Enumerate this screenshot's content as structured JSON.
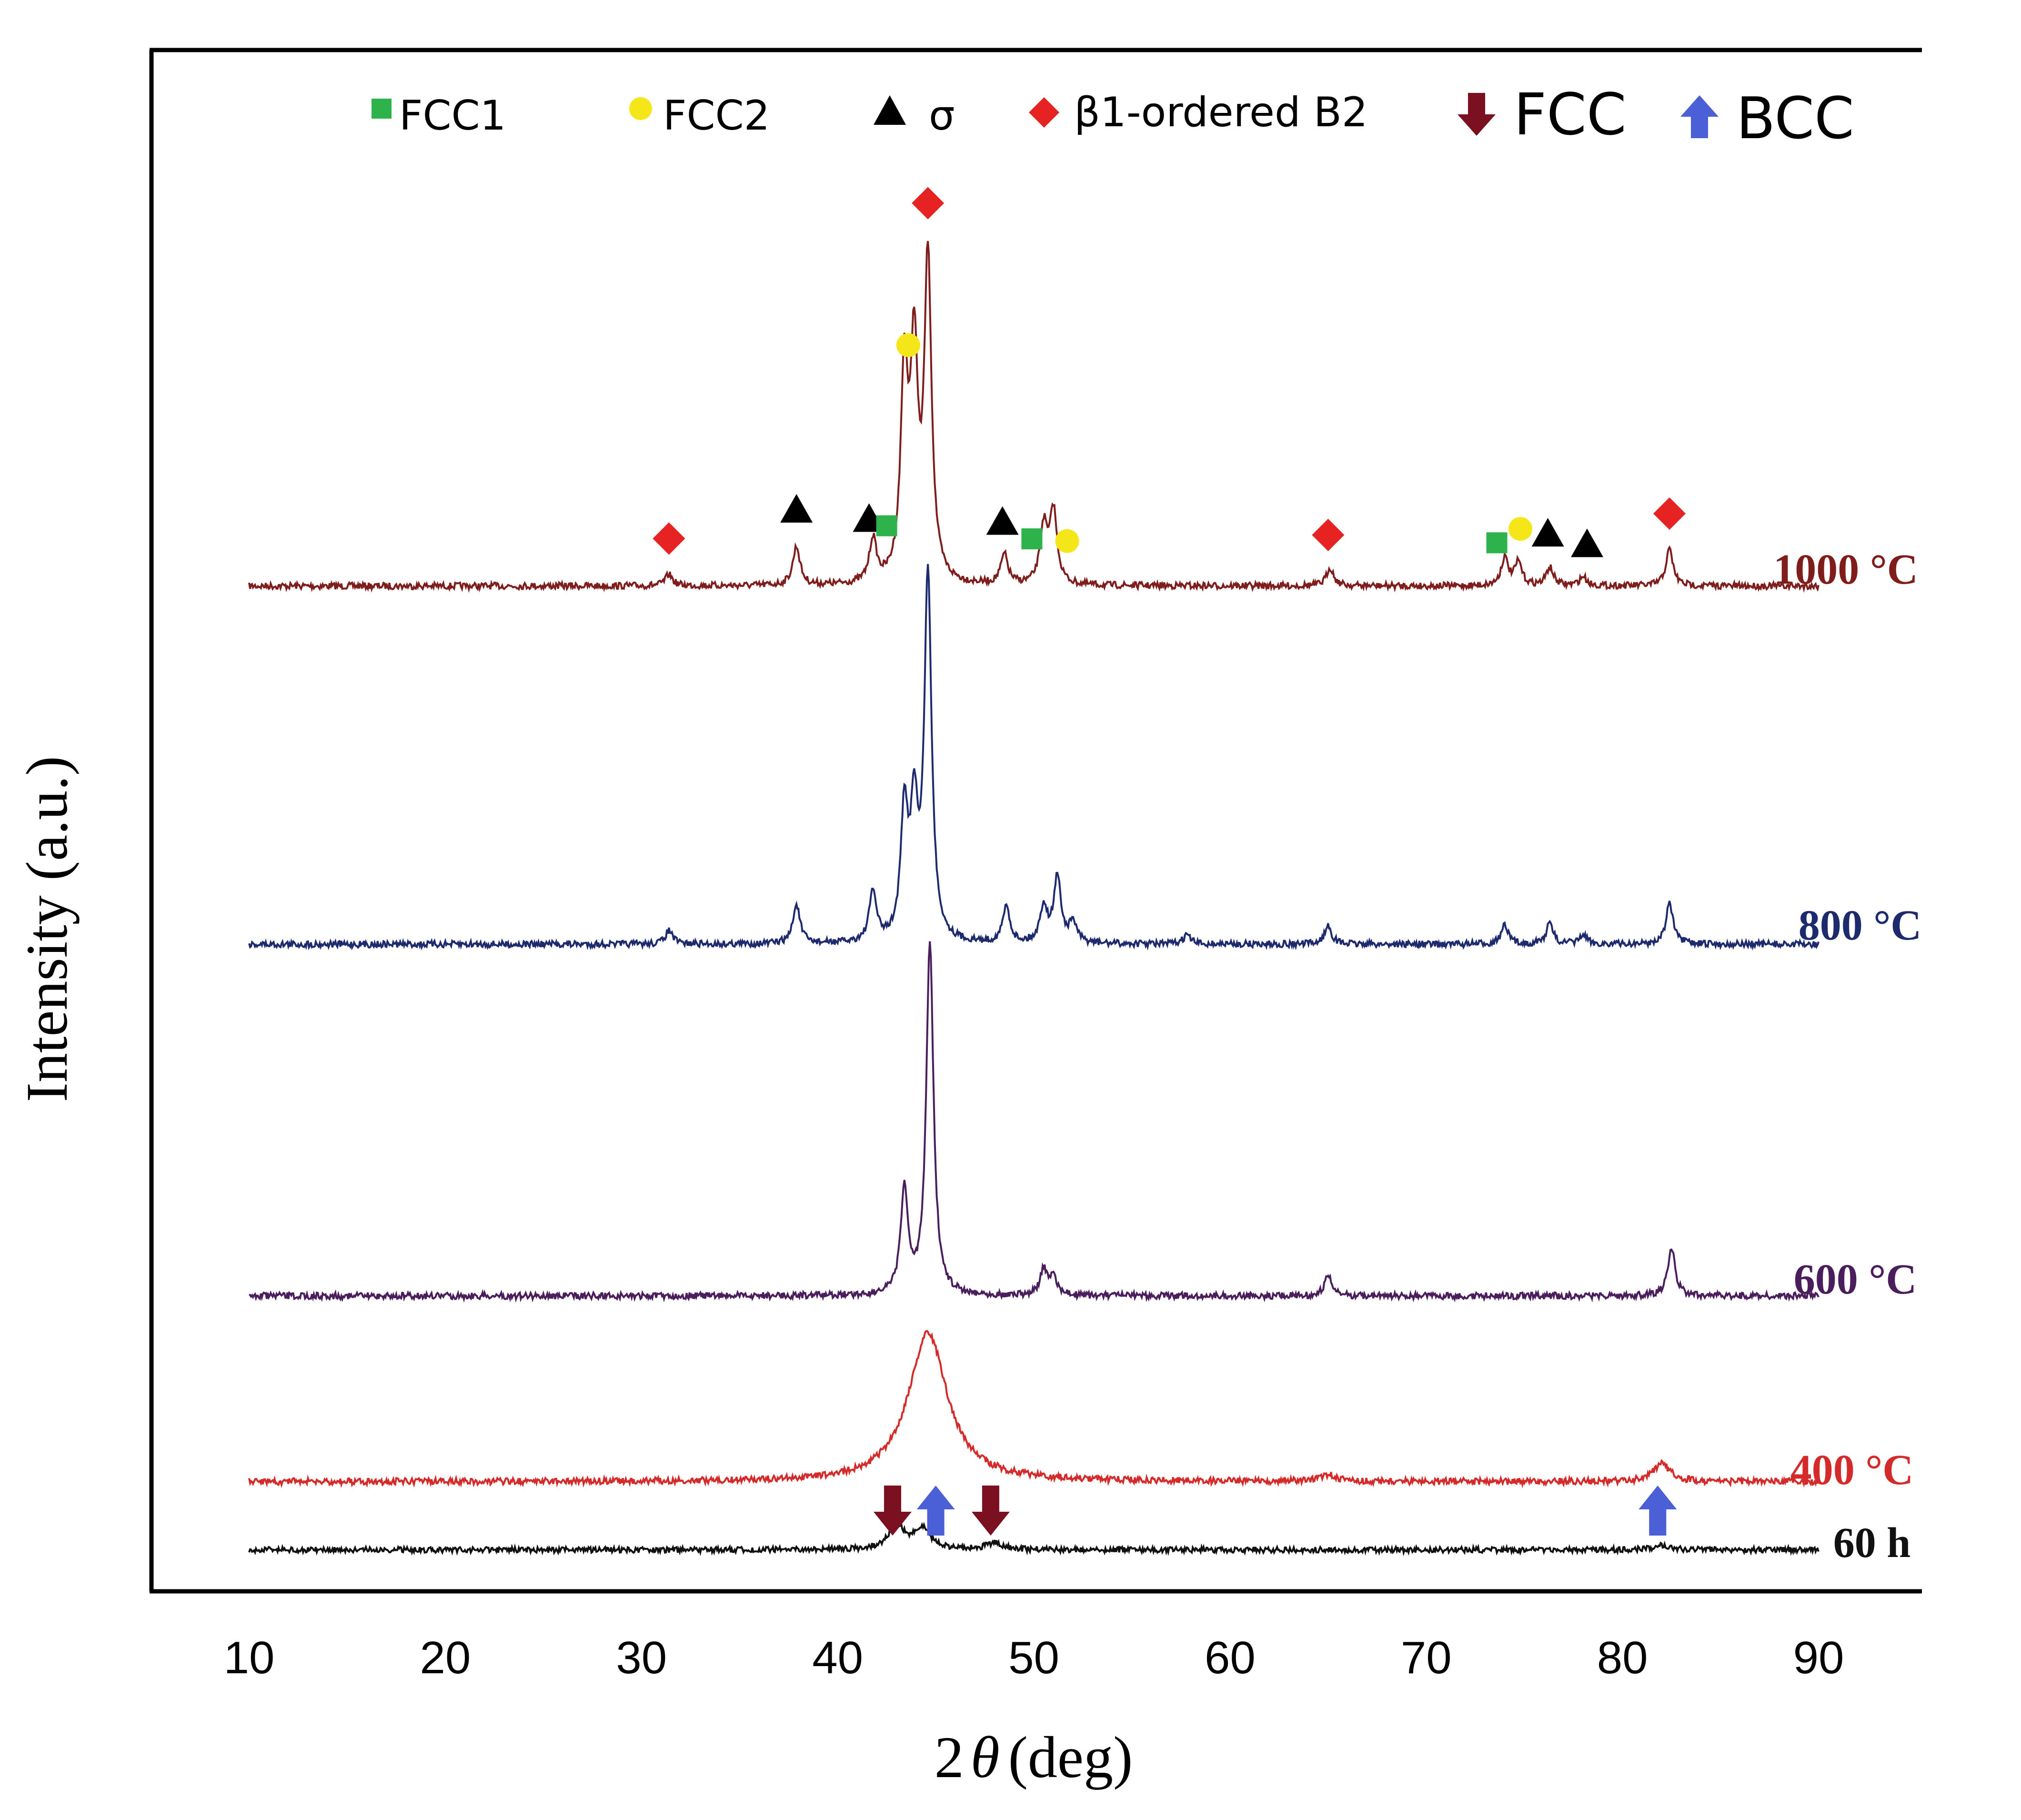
{
  "chart_data": {
    "type": "line",
    "title": "",
    "xlabel": "2θ (deg)",
    "xlabel_prefix": "2",
    "xlabel_theta": "θ",
    "xlabel_unit": "(deg)",
    "ylabel": "Intensity (a.u.)",
    "xlim": [
      5,
      96
    ],
    "x_ticks": [
      10,
      20,
      30,
      40,
      50,
      60,
      70,
      80,
      90
    ],
    "x_tick_labels": [
      "10",
      "20",
      "30",
      "40",
      "50",
      "60",
      "70",
      "80",
      "90"
    ],
    "grid": false,
    "legend_position": "top",
    "series": [
      {
        "name": "1000 °C",
        "color": "#7f1d1d",
        "peaks": [
          [
            31.4,
            0.5
          ],
          [
            37.9,
            1.7
          ],
          [
            41.8,
            1.9
          ],
          [
            43.4,
            9.0
          ],
          [
            43.9,
            9.6
          ],
          [
            44.6,
            14.0
          ],
          [
            48.5,
            1.3
          ],
          [
            50.5,
            2.5
          ],
          [
            51.0,
            3.2
          ],
          [
            65.1,
            0.8
          ],
          [
            74.0,
            1.2
          ],
          [
            74.7,
            1.0
          ],
          [
            76.3,
            0.8
          ],
          [
            78.0,
            0.4
          ],
          [
            82.4,
            1.6
          ]
        ]
      },
      {
        "name": "800 °C",
        "color": "#1e2a6e",
        "peaks": [
          [
            31.4,
            0.6
          ],
          [
            37.9,
            1.7
          ],
          [
            41.8,
            2.2
          ],
          [
            43.4,
            5.5
          ],
          [
            43.9,
            5.4
          ],
          [
            44.6,
            16.0
          ],
          [
            48.6,
            1.6
          ],
          [
            50.5,
            1.6
          ],
          [
            51.2,
            2.9
          ],
          [
            52.0,
            0.9
          ],
          [
            57.8,
            0.4
          ],
          [
            65.0,
            0.8
          ],
          [
            74.0,
            0.8
          ],
          [
            76.3,
            0.9
          ],
          [
            78.0,
            0.4
          ],
          [
            82.4,
            1.8
          ]
        ]
      },
      {
        "name": "600 °C",
        "color": "#4a1e5c",
        "peaks": [
          [
            43.4,
            4.6
          ],
          [
            44.7,
            15.5
          ],
          [
            50.5,
            1.1
          ],
          [
            51.0,
            0.8
          ],
          [
            65.0,
            0.9
          ],
          [
            82.5,
            2.1
          ]
        ]
      },
      {
        "name": "400 °C",
        "color": "#d42a2a",
        "peaks": [
          [
            44.6,
            6.5
          ],
          [
            65.0,
            0.3
          ],
          [
            82.0,
            0.8
          ]
        ]
      },
      {
        "name": "60 h",
        "color": "#111111",
        "peaks": [
          [
            43.0,
            1.0
          ],
          [
            44.3,
            0.9
          ],
          [
            48.0,
            0.3
          ],
          [
            82.0,
            0.2
          ]
        ]
      }
    ],
    "legend": [
      {
        "label": "FCC1",
        "marker": "square",
        "color": "#2db24c"
      },
      {
        "label": "FCC2",
        "marker": "circle",
        "color": "#f5e61a"
      },
      {
        "label": "σ",
        "marker": "triangle",
        "color": "#000000"
      },
      {
        "label": "β1-ordered B2",
        "marker": "diamond",
        "color": "#e62222"
      },
      {
        "label": "FCC",
        "marker": "arrow-down",
        "color": "#7a1020"
      },
      {
        "label": "BCC",
        "marker": "arrow-up",
        "color": "#4b5fd6"
      }
    ],
    "phase_annotations": [
      {
        "series": "1000 °C",
        "marker": "diamond",
        "x": 31.4
      },
      {
        "series": "1000 °C",
        "marker": "triangle",
        "x": 37.9
      },
      {
        "series": "1000 °C",
        "marker": "triangle",
        "x": 41.6
      },
      {
        "series": "1000 °C",
        "marker": "square",
        "x": 42.5
      },
      {
        "series": "1000 °C",
        "marker": "circle",
        "x": 43.6
      },
      {
        "series": "1000 °C",
        "marker": "diamond",
        "x": 44.6
      },
      {
        "series": "1000 °C",
        "marker": "triangle",
        "x": 48.4
      },
      {
        "series": "1000 °C",
        "marker": "square",
        "x": 49.9
      },
      {
        "series": "1000 °C",
        "marker": "circle",
        "x": 51.7
      },
      {
        "series": "1000 °C",
        "marker": "diamond",
        "x": 65.0
      },
      {
        "series": "1000 °C",
        "marker": "square",
        "x": 73.6
      },
      {
        "series": "1000 °C",
        "marker": "circle",
        "x": 74.8
      },
      {
        "series": "1000 °C",
        "marker": "triangle",
        "x": 76.2
      },
      {
        "series": "1000 °C",
        "marker": "triangle",
        "x": 78.2
      },
      {
        "series": "1000 °C",
        "marker": "diamond",
        "x": 82.4
      },
      {
        "series": "60 h",
        "marker": "arrow-down",
        "x": 42.8
      },
      {
        "series": "60 h",
        "marker": "arrow-up",
        "x": 45.0
      },
      {
        "series": "60 h",
        "marker": "arrow-down",
        "x": 47.8
      },
      {
        "series": "60 h",
        "marker": "arrow-up",
        "x": 81.8
      }
    ]
  }
}
